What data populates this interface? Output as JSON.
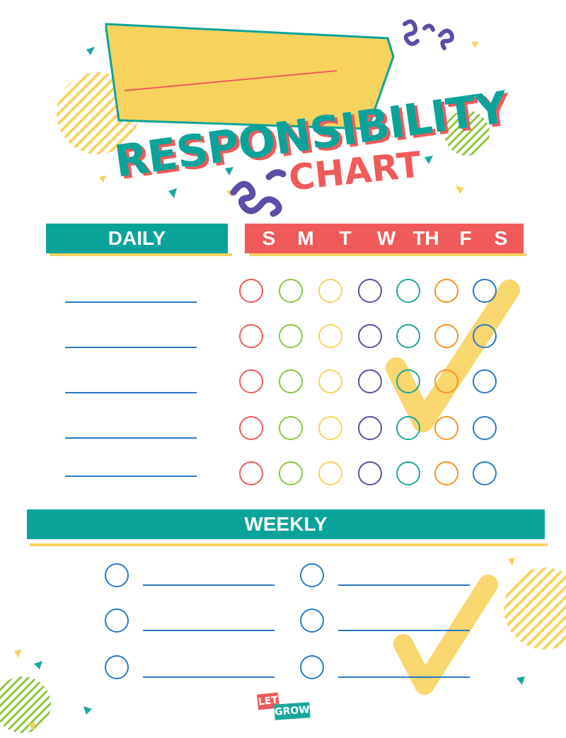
{
  "header": {
    "title": "RESPONSIBILITY",
    "subtitle": "CHART"
  },
  "daily": {
    "label": "DAILY",
    "rows": 5
  },
  "days": [
    "S",
    "M",
    "T",
    "W",
    "TH",
    "F",
    "S"
  ],
  "day_colors": [
    "#f05a5a",
    "#8cc63f",
    "#f7d35e",
    "#5b4ea8",
    "#1aa89c",
    "#f7941d",
    "#2b79c8"
  ],
  "weekly": {
    "label": "WEEKLY",
    "rows": 3,
    "columns": 2
  },
  "logo": {
    "line1": "LET",
    "line2": "GROW"
  },
  "colors": {
    "teal": "#0aa39a",
    "coral": "#f05a5a",
    "yellow": "#f7d35e",
    "purple": "#5b4ea8",
    "blue": "#2b79c8",
    "green": "#8cc63f"
  },
  "icons": [
    "checkmark-icon",
    "squiggle-icon",
    "striped-circle-icon",
    "triangle-confetti-icon"
  ]
}
